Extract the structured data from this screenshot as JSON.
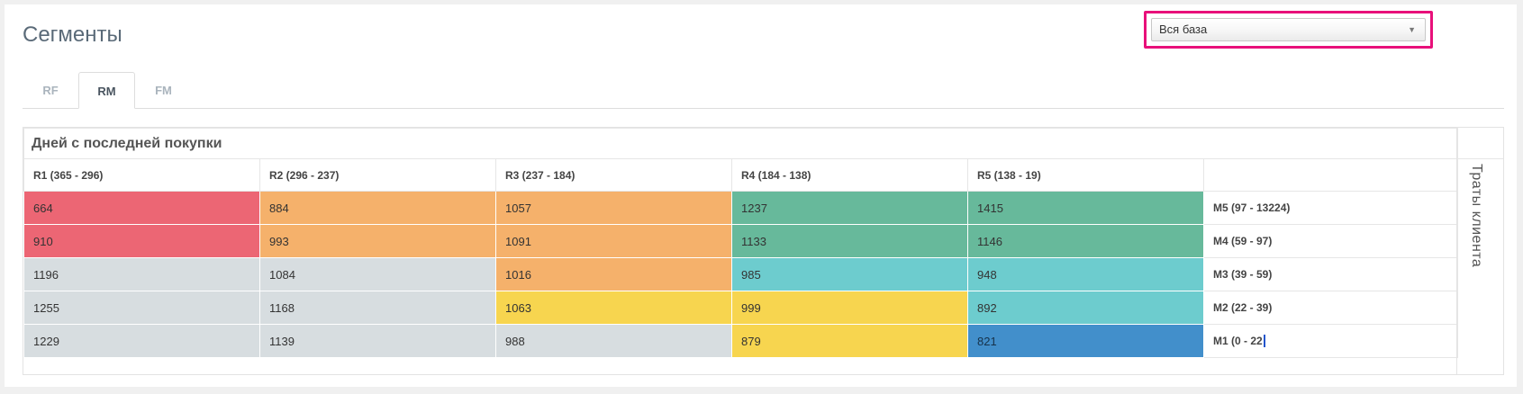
{
  "page": {
    "title": "Сегменты"
  },
  "segment_select": {
    "value": "Вся база"
  },
  "tabs": [
    {
      "label": "RF",
      "active": false
    },
    {
      "label": "RM",
      "active": true
    },
    {
      "label": "FM",
      "active": false
    }
  ],
  "table": {
    "title": "Дней с последней покупки",
    "side_label": "Траты клиента",
    "columns": [
      "R1 (365 - 296)",
      "R2 (296 - 237)",
      "R3 (237 - 184)",
      "R4 (184 - 138)",
      "R5 (138 - 19)"
    ],
    "rows": [
      {
        "label": "M5 (97 - 13224)",
        "cells": [
          "664",
          "884",
          "1057",
          "1237",
          "1415"
        ]
      },
      {
        "label": "M4 (59 - 97)",
        "cells": [
          "910",
          "993",
          "1091",
          "1133",
          "1146"
        ]
      },
      {
        "label": "M3 (39 - 59)",
        "cells": [
          "1196",
          "1084",
          "1016",
          "985",
          "948"
        ]
      },
      {
        "label": "M2 (22 - 39)",
        "cells": [
          "1255",
          "1168",
          "1063",
          "999",
          "892"
        ]
      },
      {
        "label": "M1 (0 - 22",
        "cells": [
          "1229",
          "1139",
          "988",
          "879",
          "821"
        ]
      }
    ]
  },
  "colors": {
    "red": "#ec6674",
    "orange": "#f5b16b",
    "green": "#67b99b",
    "gray": "#d7dde0",
    "teal": "#6dccce",
    "yellow": "#f7d54f",
    "blue": "#428fcb",
    "highlight": "#e8107a"
  }
}
